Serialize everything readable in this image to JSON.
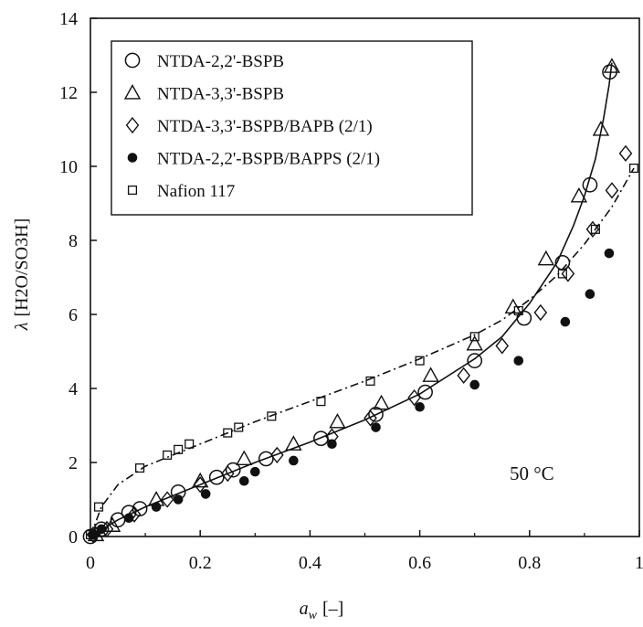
{
  "chart_data": {
    "type": "scatter",
    "xlabel_main": "a",
    "xlabel_sub": "w",
    "xlabel_unit": "[–]",
    "ylabel_lambda": "λ",
    "ylabel_rest": "[H2O/SO3H]",
    "xlim": [
      0,
      1
    ],
    "ylim": [
      0,
      14
    ],
    "xticks": [
      "0",
      "0.2",
      "0.4",
      "0.6",
      "0.8",
      "1"
    ],
    "yticks": [
      "0",
      "2",
      "4",
      "6",
      "8",
      "10",
      "12",
      "14"
    ],
    "grid": false,
    "legend_position": "top-left",
    "annotation": "50 °C",
    "series": [
      {
        "name": "NTDA-2,2'-BSPB",
        "marker": "circle-open",
        "points": [
          [
            0.0,
            0.0
          ],
          [
            0.02,
            0.2
          ],
          [
            0.05,
            0.45
          ],
          [
            0.07,
            0.65
          ],
          [
            0.09,
            0.75
          ],
          [
            0.16,
            1.2
          ],
          [
            0.23,
            1.6
          ],
          [
            0.26,
            1.8
          ],
          [
            0.32,
            2.1
          ],
          [
            0.42,
            2.65
          ],
          [
            0.52,
            3.3
          ],
          [
            0.61,
            3.9
          ],
          [
            0.7,
            4.75
          ],
          [
            0.79,
            5.9
          ],
          [
            0.86,
            7.4
          ],
          [
            0.91,
            9.5
          ],
          [
            0.946,
            12.55
          ]
        ]
      },
      {
        "name": "NTDA-3,3'-BSPB",
        "marker": "triangle-open",
        "points": [
          [
            0.01,
            0.05
          ],
          [
            0.04,
            0.3
          ],
          [
            0.12,
            1.0
          ],
          [
            0.2,
            1.5
          ],
          [
            0.28,
            2.1
          ],
          [
            0.37,
            2.5
          ],
          [
            0.45,
            3.1
          ],
          [
            0.53,
            3.6
          ],
          [
            0.62,
            4.35
          ],
          [
            0.7,
            5.2
          ],
          [
            0.77,
            6.2
          ],
          [
            0.83,
            7.5
          ],
          [
            0.89,
            9.2
          ],
          [
            0.93,
            11.0
          ],
          [
            0.95,
            12.7
          ]
        ]
      },
      {
        "name": "NTDA-3,3'-BSPB/BAPB (2/1)",
        "marker": "diamond-open",
        "points": [
          [
            0.005,
            0.05
          ],
          [
            0.03,
            0.2
          ],
          [
            0.08,
            0.6
          ],
          [
            0.14,
            1.0
          ],
          [
            0.2,
            1.4
          ],
          [
            0.25,
            1.7
          ],
          [
            0.34,
            2.2
          ],
          [
            0.44,
            2.7
          ],
          [
            0.51,
            3.2
          ],
          [
            0.59,
            3.75
          ],
          [
            0.68,
            4.35
          ],
          [
            0.75,
            5.15
          ],
          [
            0.82,
            6.05
          ],
          [
            0.87,
            7.1
          ],
          [
            0.915,
            8.3
          ],
          [
            0.95,
            9.35
          ],
          [
            0.975,
            10.35
          ]
        ]
      },
      {
        "name": "NTDA-2,2'-BSPB/BAPPS (2/1)",
        "marker": "circle-filled",
        "points": [
          [
            0.005,
            0.05
          ],
          [
            0.02,
            0.2
          ],
          [
            0.07,
            0.5
          ],
          [
            0.12,
            0.8
          ],
          [
            0.16,
            1.0
          ],
          [
            0.21,
            1.15
          ],
          [
            0.28,
            1.5
          ],
          [
            0.3,
            1.75
          ],
          [
            0.37,
            2.05
          ],
          [
            0.44,
            2.5
          ],
          [
            0.52,
            2.95
          ],
          [
            0.6,
            3.5
          ],
          [
            0.7,
            4.1
          ],
          [
            0.78,
            4.75
          ],
          [
            0.865,
            5.8
          ],
          [
            0.91,
            6.55
          ],
          [
            0.945,
            7.65
          ]
        ]
      },
      {
        "name": "Nafion 117",
        "marker": "square-open",
        "points": [
          [
            0.0,
            0.05
          ],
          [
            0.015,
            0.8
          ],
          [
            0.09,
            1.85
          ],
          [
            0.14,
            2.2
          ],
          [
            0.16,
            2.35
          ],
          [
            0.18,
            2.5
          ],
          [
            0.25,
            2.8
          ],
          [
            0.27,
            2.95
          ],
          [
            0.33,
            3.25
          ],
          [
            0.42,
            3.65
          ],
          [
            0.51,
            4.2
          ],
          [
            0.6,
            4.75
          ],
          [
            0.7,
            5.4
          ],
          [
            0.78,
            6.1
          ],
          [
            0.86,
            7.1
          ],
          [
            0.92,
            8.3
          ],
          [
            0.99,
            9.95
          ]
        ]
      }
    ],
    "fit_curves": [
      {
        "style": "solid",
        "points": [
          [
            0,
            0
          ],
          [
            0.05,
            0.45
          ],
          [
            0.1,
            0.8
          ],
          [
            0.2,
            1.4
          ],
          [
            0.3,
            2.0
          ],
          [
            0.4,
            2.55
          ],
          [
            0.5,
            3.15
          ],
          [
            0.6,
            3.85
          ],
          [
            0.7,
            4.8
          ],
          [
            0.75,
            5.4
          ],
          [
            0.8,
            6.3
          ],
          [
            0.85,
            7.4
          ],
          [
            0.88,
            8.4
          ],
          [
            0.9,
            9.2
          ],
          [
            0.92,
            10.2
          ],
          [
            0.935,
            11.3
          ],
          [
            0.945,
            12.2
          ],
          [
            0.95,
            12.8
          ]
        ]
      },
      {
        "style": "dashdot",
        "points": [
          [
            0,
            0
          ],
          [
            0.02,
            0.8
          ],
          [
            0.05,
            1.4
          ],
          [
            0.1,
            1.9
          ],
          [
            0.15,
            2.2
          ],
          [
            0.2,
            2.5
          ],
          [
            0.3,
            3.1
          ],
          [
            0.4,
            3.65
          ],
          [
            0.5,
            4.2
          ],
          [
            0.6,
            4.8
          ],
          [
            0.7,
            5.45
          ],
          [
            0.75,
            5.85
          ],
          [
            0.8,
            6.4
          ],
          [
            0.85,
            7.05
          ],
          [
            0.9,
            7.9
          ],
          [
            0.95,
            8.9
          ],
          [
            0.99,
            9.95
          ]
        ]
      }
    ]
  }
}
